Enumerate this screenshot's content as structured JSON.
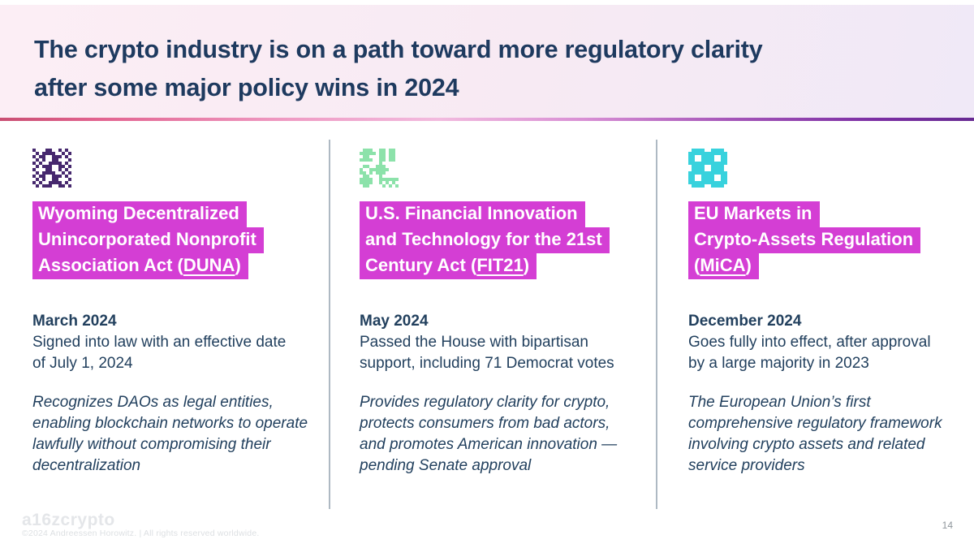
{
  "header": {
    "title_lines": [
      "The crypto industry is on a path toward more regulatory clarity",
      "after some major policy wins in 2024"
    ]
  },
  "columns": [
    {
      "icon": "duna",
      "heading_lines": [
        [
          {
            "t": "Wyoming Decentralized"
          }
        ],
        [
          {
            "t": "Unincorporated Nonprofit"
          }
        ],
        [
          {
            "t": "Association Act ("
          },
          {
            "t": "DUNA",
            "u": true
          },
          {
            "t": ")"
          }
        ]
      ],
      "date": "March 2024",
      "description": "Signed into law with an effective date\nof July 1, 2024",
      "note": "Recognizes DAOs as legal entities,\nenabling blockchain networks to operate\nlawfully without compromising their\ndecentralization"
    },
    {
      "icon": "fit21",
      "heading_lines": [
        [
          {
            "t": "U.S. Financial Innovation"
          }
        ],
        [
          {
            "t": "and Technology for the 21st"
          }
        ],
        [
          {
            "t": "Century Act ("
          },
          {
            "t": "FIT21",
            "u": true
          },
          {
            "t": ")"
          }
        ]
      ],
      "date": "May 2024",
      "description": "Passed the House with bipartisan\nsupport, including 71 Democrat votes",
      "note": "Provides regulatory clarity for crypto,\nprotects consumers from bad actors,\nand promotes American innovation —\npending Senate approval"
    },
    {
      "icon": "mica",
      "heading_lines": [
        [
          {
            "t": "EU Markets in"
          }
        ],
        [
          {
            "t": "Crypto-Assets Regulation"
          }
        ],
        [
          {
            "t": "("
          },
          {
            "t": "MiCA",
            "u": true
          },
          {
            "t": ")"
          }
        ]
      ],
      "date": "December 2024",
      "description": "Goes fully into effect, after approval\nby a large majority in 2023",
      "note": "The European Union’s first\ncomprehensive regulatory framework\ninvolving crypto assets and related\nservice providers"
    }
  ],
  "footer": {
    "logo": "a16zcrypto",
    "copyright": "©2024 Andreessen Horowitz.  |  All rights reserved worldwide.",
    "page_number": "14"
  },
  "colors": {
    "highlight": "#d43ed4",
    "title": "#1e3a5f",
    "body": "#22405e",
    "icon_purple": "#46286e",
    "icon_green": "#8ce2aa",
    "icon_teal": "#38d2dd"
  },
  "icons": {
    "duna": {
      "name": "checker-arches-icon",
      "color": "icon_purple",
      "pixels": [
        "100011001010",
        "010111100101",
        "101100111010",
        "010100110001",
        "101001111010",
        "010111001101",
        "100011001010",
        "010111100101",
        "101100111010",
        "010100110001",
        "101001111010",
        "010111001101"
      ]
    },
    "fit21": {
      "name": "organic-shapes-icon",
      "color": "icon_green",
      "pixels": [
        "011100110110",
        "111110110110",
        "011000110110",
        "111100110110",
        "000000100000",
        "011001110000",
        "100111111000",
        "110101110000",
        "011000100000",
        "111100111111",
        "111100101010",
        "011000010101"
      ]
    },
    "mica": {
      "name": "pixel-rings-icon",
      "color": "icon_teal",
      "pixels": [
        "011110011110",
        "111111111111",
        "110011110011",
        "110011110011",
        "111111111111",
        "011110011110",
        "011110011110",
        "111111111111",
        "110011110011",
        "110011110011",
        "111111111111",
        "011110011110"
      ]
    }
  }
}
